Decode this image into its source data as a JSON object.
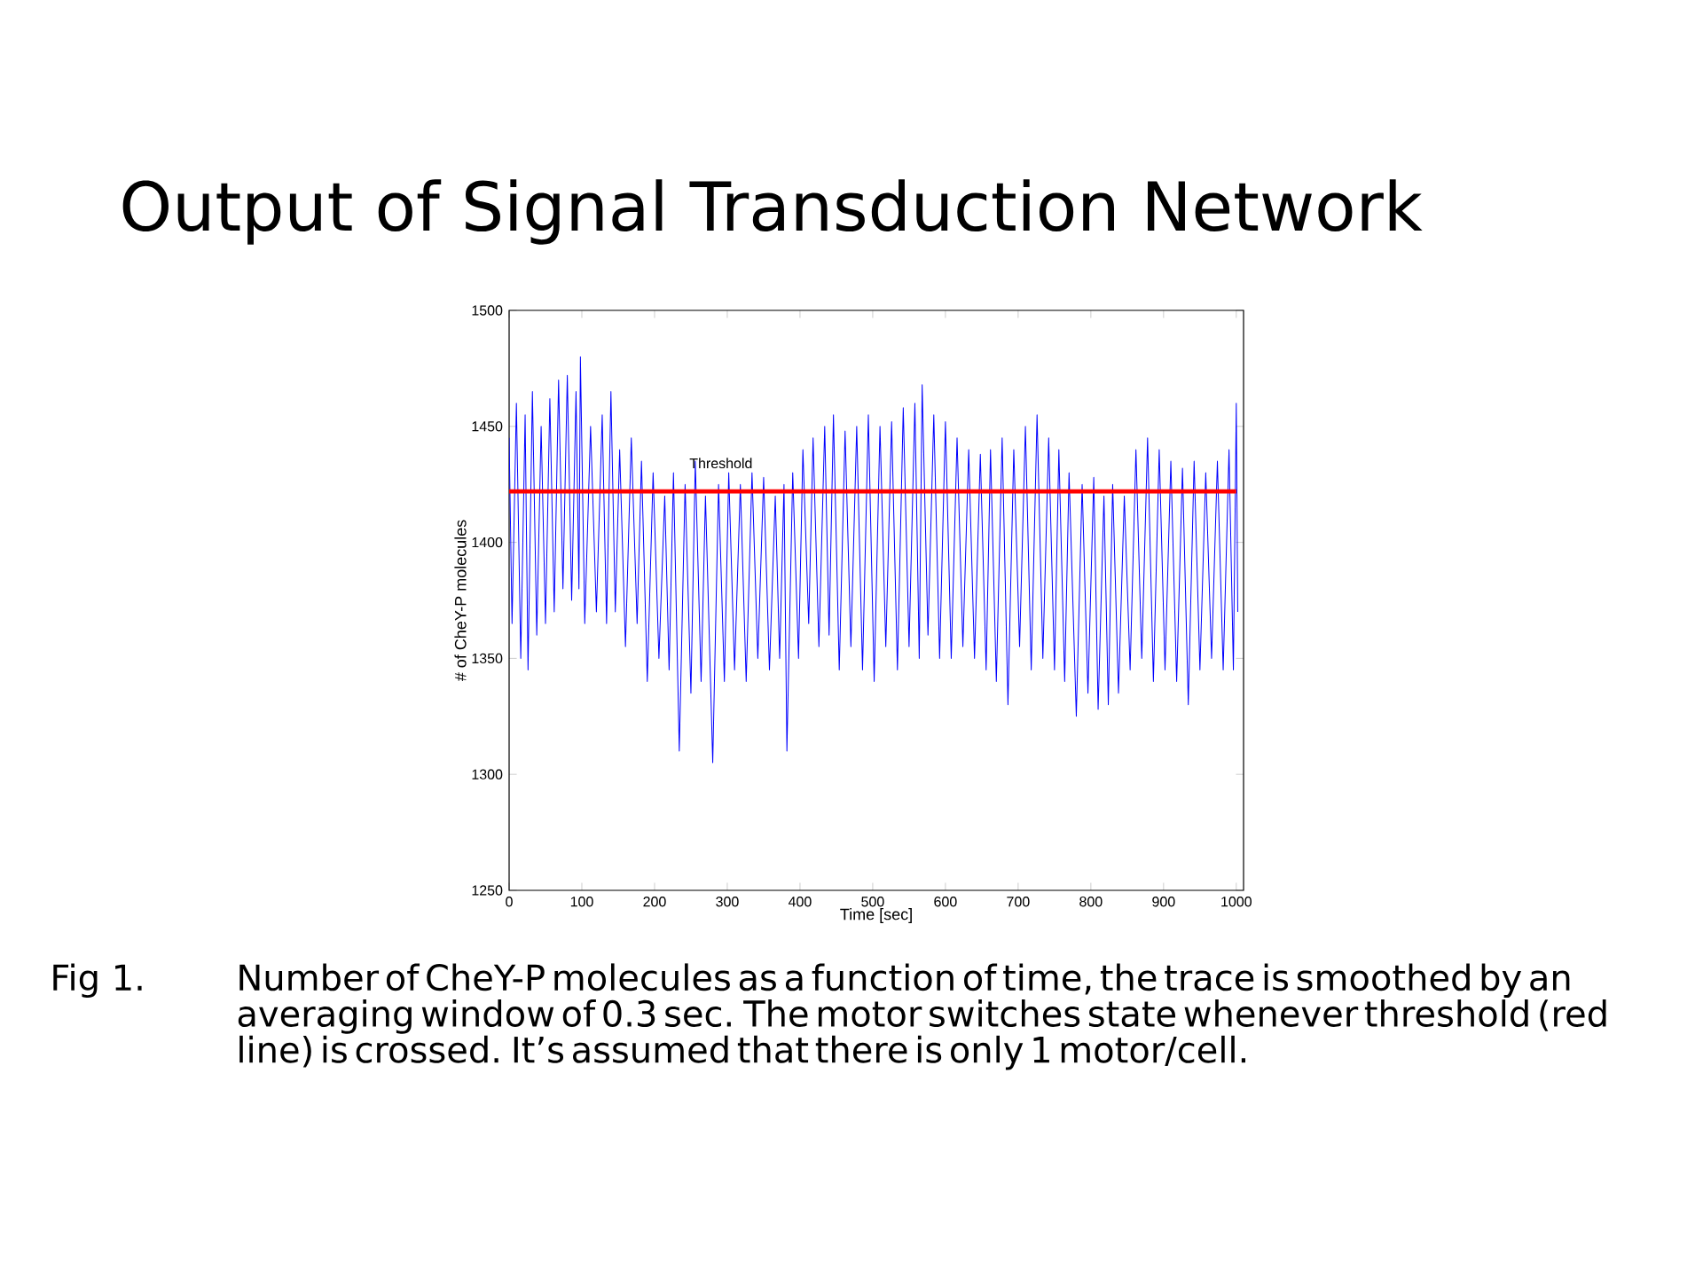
{
  "chart_data": {
    "type": "line",
    "title": "Output of Signal Transduction Network",
    "xlabel": "Time [sec]",
    "ylabel": "# of CheY-P molecules",
    "xlim": [
      0,
      1010
    ],
    "ylim": [
      1250,
      1500
    ],
    "xticks": [
      0,
      100,
      200,
      300,
      400,
      500,
      600,
      700,
      800,
      900,
      1000
    ],
    "yticks": [
      1250,
      1300,
      1350,
      1400,
      1450,
      1500
    ],
    "grid": false,
    "series": [
      {
        "color": "#0000ff",
        "x": [
          0,
          4,
          10,
          16,
          22,
          26,
          32,
          38,
          44,
          50,
          56,
          62,
          68,
          74,
          80,
          86,
          92,
          96,
          98,
          104,
          112,
          120,
          128,
          134,
          140,
          146,
          152,
          160,
          168,
          176,
          182,
          190,
          198,
          206,
          214,
          220,
          226,
          234,
          242,
          250,
          256,
          264,
          270,
          280,
          288,
          296,
          302,
          310,
          318,
          326,
          334,
          342,
          350,
          358,
          366,
          372,
          378,
          382,
          390,
          398,
          404,
          412,
          418,
          426,
          434,
          440,
          446,
          454,
          462,
          470,
          478,
          486,
          494,
          502,
          510,
          518,
          526,
          534,
          542,
          550,
          558,
          564,
          568,
          576,
          584,
          592,
          600,
          608,
          616,
          624,
          632,
          640,
          648,
          656,
          662,
          670,
          678,
          686,
          694,
          702,
          710,
          718,
          726,
          734,
          742,
          750,
          756,
          764,
          770,
          780,
          788,
          796,
          804,
          810,
          818,
          824,
          830,
          838,
          846,
          854,
          862,
          870,
          878,
          886,
          894,
          902,
          910,
          918,
          926,
          934,
          942,
          950,
          958,
          966,
          974,
          982,
          990,
          996,
          1000,
          1002
        ],
        "values": [
          1445,
          1365,
          1460,
          1350,
          1455,
          1345,
          1465,
          1360,
          1450,
          1365,
          1462,
          1370,
          1470,
          1380,
          1472,
          1375,
          1465,
          1380,
          1480,
          1365,
          1450,
          1370,
          1455,
          1365,
          1465,
          1370,
          1440,
          1355,
          1445,
          1365,
          1435,
          1340,
          1430,
          1350,
          1420,
          1345,
          1430,
          1310,
          1425,
          1335,
          1435,
          1340,
          1420,
          1305,
          1425,
          1340,
          1430,
          1345,
          1425,
          1340,
          1430,
          1350,
          1428,
          1345,
          1420,
          1350,
          1425,
          1310,
          1430,
          1350,
          1440,
          1365,
          1445,
          1355,
          1450,
          1360,
          1455,
          1345,
          1448,
          1355,
          1450,
          1345,
          1455,
          1340,
          1450,
          1355,
          1452,
          1345,
          1458,
          1355,
          1460,
          1350,
          1468,
          1360,
          1455,
          1350,
          1452,
          1350,
          1445,
          1355,
          1440,
          1350,
          1438,
          1345,
          1440,
          1340,
          1445,
          1330,
          1440,
          1355,
          1450,
          1345,
          1455,
          1350,
          1445,
          1345,
          1440,
          1340,
          1430,
          1325,
          1425,
          1335,
          1428,
          1328,
          1420,
          1330,
          1425,
          1335,
          1420,
          1345,
          1440,
          1350,
          1445,
          1340,
          1440,
          1345,
          1435,
          1340,
          1432,
          1330,
          1435,
          1345,
          1430,
          1350,
          1435,
          1345,
          1440,
          1345,
          1460,
          1370
        ]
      }
    ],
    "ref_lines": [
      {
        "axis": "y",
        "value": 1422,
        "label": "Threshold",
        "color": "#ff0000"
      }
    ],
    "annotations": [
      "Fig 1.",
      "Number of CheY-P molecules as a function of time, the trace is smoothed by an averaging window of 0.3 sec. The motor switches state whenever threshold (red line) is crossed. It’s assumed that there is only 1 motor/cell."
    ]
  }
}
